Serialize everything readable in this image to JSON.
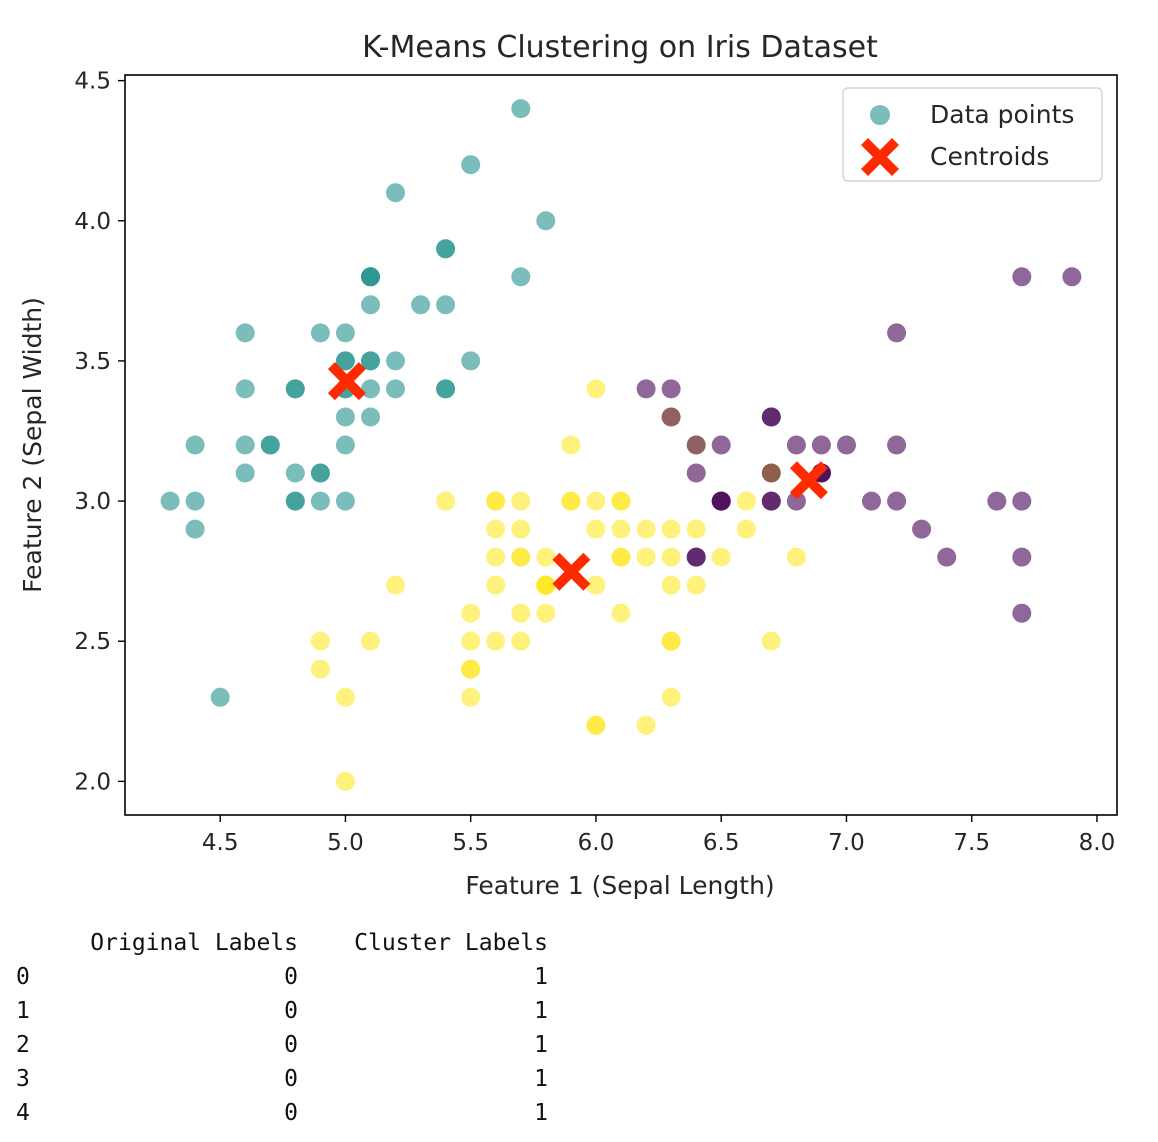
{
  "chart_data": {
    "type": "scatter",
    "title": "K-Means Clustering on Iris Dataset",
    "xlabel": "Feature 1 (Sepal Length)",
    "ylabel": "Feature 2 (Sepal Width)",
    "xlim": [
      4.12,
      8.08
    ],
    "ylim": [
      1.88,
      4.52
    ],
    "xticks": [
      4.5,
      5.0,
      5.5,
      6.0,
      6.5,
      7.0,
      7.5,
      8.0
    ],
    "yticks": [
      2.0,
      2.5,
      3.0,
      3.5,
      4.0,
      4.5
    ],
    "xtick_labels": [
      "4.5",
      "5.0",
      "5.5",
      "6.0",
      "6.5",
      "7.0",
      "7.5",
      "8.0"
    ],
    "ytick_labels": [
      "2.0",
      "2.5",
      "3.0",
      "3.5",
      "4.0",
      "4.5"
    ],
    "grid": false,
    "legend_placement": "top-right",
    "colors": {
      "cluster_0": "#440154",
      "cluster_1": "#21918c",
      "cluster_2": "#fde725",
      "centroid": "#ff2a00"
    },
    "series": [
      {
        "name": "Data points",
        "marker": "circle",
        "points": [
          [
            5.1,
            3.5,
            1
          ],
          [
            4.9,
            3.0,
            1
          ],
          [
            4.7,
            3.2,
            1
          ],
          [
            4.6,
            3.1,
            1
          ],
          [
            5.0,
            3.6,
            1
          ],
          [
            5.4,
            3.9,
            1
          ],
          [
            4.6,
            3.4,
            1
          ],
          [
            5.0,
            3.4,
            1
          ],
          [
            4.4,
            2.9,
            1
          ],
          [
            4.9,
            3.1,
            1
          ],
          [
            5.4,
            3.7,
            1
          ],
          [
            4.8,
            3.4,
            1
          ],
          [
            4.8,
            3.0,
            1
          ],
          [
            4.3,
            3.0,
            1
          ],
          [
            5.8,
            4.0,
            1
          ],
          [
            5.7,
            4.4,
            1
          ],
          [
            5.4,
            3.9,
            1
          ],
          [
            5.1,
            3.5,
            1
          ],
          [
            5.7,
            3.8,
            1
          ],
          [
            5.1,
            3.8,
            1
          ],
          [
            5.4,
            3.4,
            1
          ],
          [
            5.1,
            3.7,
            1
          ],
          [
            4.6,
            3.6,
            1
          ],
          [
            5.1,
            3.3,
            1
          ],
          [
            4.8,
            3.4,
            1
          ],
          [
            5.0,
            3.0,
            1
          ],
          [
            5.0,
            3.4,
            1
          ],
          [
            5.2,
            3.5,
            1
          ],
          [
            5.2,
            3.4,
            1
          ],
          [
            4.7,
            3.2,
            1
          ],
          [
            4.8,
            3.1,
            1
          ],
          [
            5.4,
            3.4,
            1
          ],
          [
            5.2,
            4.1,
            1
          ],
          [
            5.5,
            4.2,
            1
          ],
          [
            4.9,
            3.1,
            1
          ],
          [
            5.0,
            3.2,
            1
          ],
          [
            5.5,
            3.5,
            1
          ],
          [
            4.9,
            3.6,
            1
          ],
          [
            4.4,
            3.0,
            1
          ],
          [
            5.1,
            3.4,
            1
          ],
          [
            5.0,
            3.5,
            1
          ],
          [
            4.5,
            2.3,
            1
          ],
          [
            4.4,
            3.2,
            1
          ],
          [
            5.0,
            3.5,
            1
          ],
          [
            5.1,
            3.8,
            1
          ],
          [
            4.8,
            3.0,
            1
          ],
          [
            5.1,
            3.8,
            1
          ],
          [
            4.6,
            3.2,
            1
          ],
          [
            5.3,
            3.7,
            1
          ],
          [
            5.0,
            3.3,
            1
          ],
          [
            7.0,
            3.2,
            0
          ],
          [
            6.4,
            3.2,
            2
          ],
          [
            6.9,
            3.1,
            0
          ],
          [
            5.5,
            2.3,
            2
          ],
          [
            6.5,
            2.8,
            2
          ],
          [
            5.7,
            2.8,
            2
          ],
          [
            6.3,
            3.3,
            2
          ],
          [
            4.9,
            2.4,
            2
          ],
          [
            6.6,
            2.9,
            2
          ],
          [
            5.2,
            2.7,
            2
          ],
          [
            5.0,
            2.0,
            2
          ],
          [
            5.9,
            3.0,
            2
          ],
          [
            6.0,
            2.2,
            2
          ],
          [
            6.1,
            2.9,
            2
          ],
          [
            5.6,
            2.9,
            2
          ],
          [
            6.7,
            3.1,
            2
          ],
          [
            5.6,
            3.0,
            2
          ],
          [
            5.8,
            2.7,
            2
          ],
          [
            6.2,
            2.2,
            2
          ],
          [
            5.6,
            2.5,
            2
          ],
          [
            5.9,
            3.2,
            2
          ],
          [
            6.1,
            2.8,
            2
          ],
          [
            6.3,
            2.5,
            2
          ],
          [
            6.1,
            2.8,
            2
          ],
          [
            6.4,
            2.9,
            2
          ],
          [
            6.6,
            3.0,
            2
          ],
          [
            6.8,
            2.8,
            2
          ],
          [
            6.7,
            3.0,
            0
          ],
          [
            6.0,
            2.9,
            2
          ],
          [
            5.7,
            2.6,
            2
          ],
          [
            5.5,
            2.4,
            2
          ],
          [
            5.5,
            2.4,
            2
          ],
          [
            5.8,
            2.7,
            2
          ],
          [
            6.0,
            2.7,
            2
          ],
          [
            5.4,
            3.0,
            2
          ],
          [
            6.0,
            3.4,
            2
          ],
          [
            6.7,
            3.1,
            2
          ],
          [
            6.3,
            2.3,
            2
          ],
          [
            5.6,
            3.0,
            2
          ],
          [
            5.5,
            2.5,
            2
          ],
          [
            5.5,
            2.6,
            2
          ],
          [
            6.1,
            3.0,
            2
          ],
          [
            5.8,
            2.6,
            2
          ],
          [
            5.0,
            2.3,
            2
          ],
          [
            5.6,
            2.7,
            2
          ],
          [
            5.7,
            3.0,
            2
          ],
          [
            5.7,
            2.9,
            2
          ],
          [
            6.2,
            2.9,
            2
          ],
          [
            5.1,
            2.5,
            2
          ],
          [
            5.7,
            2.8,
            2
          ],
          [
            6.3,
            3.3,
            0
          ],
          [
            5.8,
            2.7,
            2
          ],
          [
            7.1,
            3.0,
            0
          ],
          [
            6.3,
            2.9,
            2
          ],
          [
            6.5,
            3.0,
            0
          ],
          [
            7.6,
            3.0,
            0
          ],
          [
            4.9,
            2.5,
            2
          ],
          [
            7.3,
            2.9,
            0
          ],
          [
            6.7,
            2.5,
            2
          ],
          [
            7.2,
            3.6,
            0
          ],
          [
            6.5,
            3.2,
            0
          ],
          [
            6.4,
            2.7,
            2
          ],
          [
            6.8,
            3.0,
            0
          ],
          [
            5.7,
            2.5,
            2
          ],
          [
            5.8,
            2.8,
            2
          ],
          [
            6.4,
            3.2,
            0
          ],
          [
            6.5,
            3.0,
            0
          ],
          [
            7.7,
            3.8,
            0
          ],
          [
            7.7,
            2.6,
            0
          ],
          [
            6.0,
            2.2,
            2
          ],
          [
            6.9,
            3.2,
            0
          ],
          [
            5.6,
            2.8,
            2
          ],
          [
            7.7,
            2.8,
            0
          ],
          [
            6.3,
            2.7,
            2
          ],
          [
            6.7,
            3.3,
            0
          ],
          [
            7.2,
            3.2,
            0
          ],
          [
            6.2,
            2.8,
            2
          ],
          [
            6.1,
            3.0,
            2
          ],
          [
            6.4,
            2.8,
            0
          ],
          [
            7.2,
            3.0,
            0
          ],
          [
            7.4,
            2.8,
            0
          ],
          [
            7.9,
            3.8,
            0
          ],
          [
            6.4,
            2.8,
            0
          ],
          [
            6.3,
            2.8,
            2
          ],
          [
            6.1,
            2.6,
            2
          ],
          [
            7.7,
            3.0,
            0
          ],
          [
            6.3,
            3.4,
            0
          ],
          [
            6.4,
            3.1,
            0
          ],
          [
            6.0,
            3.0,
            2
          ],
          [
            6.9,
            3.1,
            0
          ],
          [
            6.7,
            3.1,
            0
          ],
          [
            6.9,
            3.1,
            0
          ],
          [
            5.8,
            2.7,
            2
          ],
          [
            6.8,
            3.2,
            0
          ],
          [
            6.7,
            3.3,
            0
          ],
          [
            6.7,
            3.0,
            0
          ],
          [
            6.3,
            2.5,
            2
          ],
          [
            6.5,
            3.0,
            0
          ],
          [
            6.2,
            3.4,
            0
          ],
          [
            5.9,
            3.0,
            2
          ]
        ]
      },
      {
        "name": "Centroids",
        "marker": "X",
        "points": [
          [
            5.006,
            3.428
          ],
          [
            5.902,
            2.748
          ],
          [
            6.85,
            3.074
          ]
        ]
      }
    ]
  },
  "table": {
    "headers": [
      "",
      "Original Labels",
      "Cluster Labels"
    ],
    "rows": [
      [
        "0",
        "0",
        "1"
      ],
      [
        "1",
        "0",
        "1"
      ],
      [
        "2",
        "0",
        "1"
      ],
      [
        "3",
        "0",
        "1"
      ],
      [
        "4",
        "0",
        "1"
      ]
    ]
  }
}
